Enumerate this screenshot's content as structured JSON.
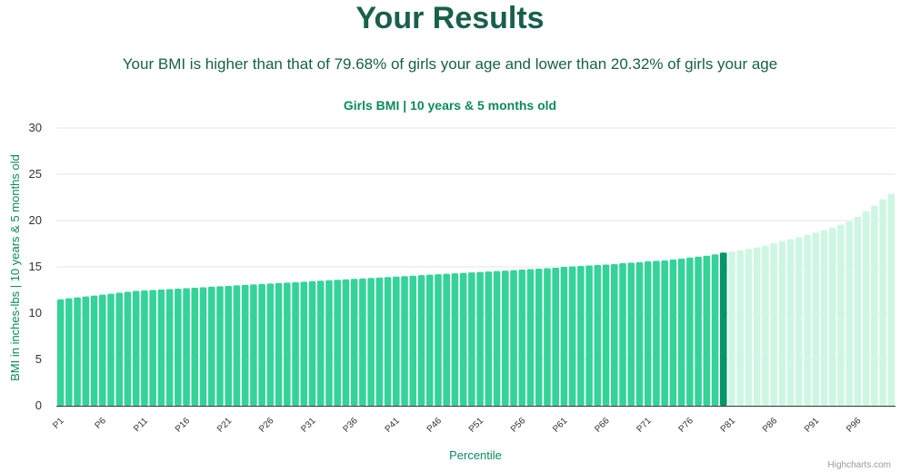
{
  "header": {
    "title": "Your Results",
    "subtitle": "Your BMI is higher than that of 79.68% of girls your age and lower than 20.32% of girls your age"
  },
  "credits": "Highcharts.com",
  "colors": {
    "below": "#34d399",
    "highlight": "#059669",
    "above": "#cdf7e2",
    "title": "#17604a",
    "chart_title": "#0b8a5c",
    "grid": "#e6e6e6"
  },
  "chart_data": {
    "type": "bar",
    "title": "Girls BMI | 10 years & 5 months old",
    "xlabel": "Percentile",
    "ylabel": "BMI in inches-lbs | 10 years & 5 months old",
    "ylim": [
      0,
      30
    ],
    "yticks": [
      0,
      5,
      10,
      15,
      20,
      25,
      30
    ],
    "grid": true,
    "highlight_index": 79,
    "categories": [
      "P1",
      "P2",
      "P3",
      "P4",
      "P5",
      "P6",
      "P7",
      "P8",
      "P9",
      "P10",
      "P11",
      "P12",
      "P13",
      "P14",
      "P15",
      "P16",
      "P17",
      "P18",
      "P19",
      "P20",
      "P21",
      "P22",
      "P23",
      "P24",
      "P25",
      "P26",
      "P27",
      "P28",
      "P29",
      "P30",
      "P31",
      "P32",
      "P33",
      "P34",
      "P35",
      "P36",
      "P37",
      "P38",
      "P39",
      "P40",
      "P41",
      "P42",
      "P43",
      "P44",
      "P45",
      "P46",
      "P47",
      "P48",
      "P49",
      "P50",
      "P51",
      "P52",
      "P53",
      "P54",
      "P55",
      "P56",
      "P57",
      "P58",
      "P59",
      "P60",
      "P61",
      "P62",
      "P63",
      "P64",
      "P65",
      "P66",
      "P67",
      "P68",
      "P69",
      "P70",
      "P71",
      "P72",
      "P73",
      "P74",
      "P75",
      "P76",
      "P77",
      "P78",
      "P79",
      "P80",
      "P81",
      "P82",
      "P83",
      "P84",
      "P85",
      "P86",
      "P87",
      "P88",
      "P89",
      "P90",
      "P91",
      "P92",
      "P93",
      "P94",
      "P95",
      "P96",
      "P97",
      "P98",
      "P99",
      "P100"
    ],
    "values": [
      11.5,
      11.6,
      11.7,
      11.8,
      11.9,
      12.0,
      12.1,
      12.2,
      12.3,
      12.4,
      12.45,
      12.5,
      12.55,
      12.6,
      12.65,
      12.7,
      12.75,
      12.8,
      12.85,
      12.9,
      12.95,
      13.0,
      13.05,
      13.1,
      13.15,
      13.2,
      13.25,
      13.3,
      13.35,
      13.4,
      13.45,
      13.5,
      13.55,
      13.6,
      13.65,
      13.7,
      13.75,
      13.8,
      13.85,
      13.9,
      13.95,
      14.0,
      14.05,
      14.1,
      14.15,
      14.2,
      14.25,
      14.3,
      14.35,
      14.4,
      14.45,
      14.5,
      14.55,
      14.6,
      14.65,
      14.7,
      14.75,
      14.8,
      14.85,
      14.9,
      15.0,
      15.05,
      15.1,
      15.15,
      15.2,
      15.25,
      15.3,
      15.4,
      15.45,
      15.5,
      15.6,
      15.65,
      15.7,
      15.8,
      15.9,
      16.0,
      16.1,
      16.2,
      16.35,
      16.55,
      16.65,
      16.8,
      16.95,
      17.1,
      17.3,
      17.55,
      17.8,
      18.0,
      18.2,
      18.45,
      18.7,
      18.95,
      19.2,
      19.55,
      19.9,
      20.4,
      21.0,
      21.6,
      22.3,
      22.9
    ],
    "visible_tick_labels": [
      "P1",
      "P6",
      "P11",
      "P16",
      "P21",
      "P26",
      "P31",
      "P36",
      "P41",
      "P46",
      "P51",
      "P56",
      "P61",
      "P66",
      "P71",
      "P76",
      "P81",
      "P86",
      "P91",
      "P96"
    ]
  }
}
